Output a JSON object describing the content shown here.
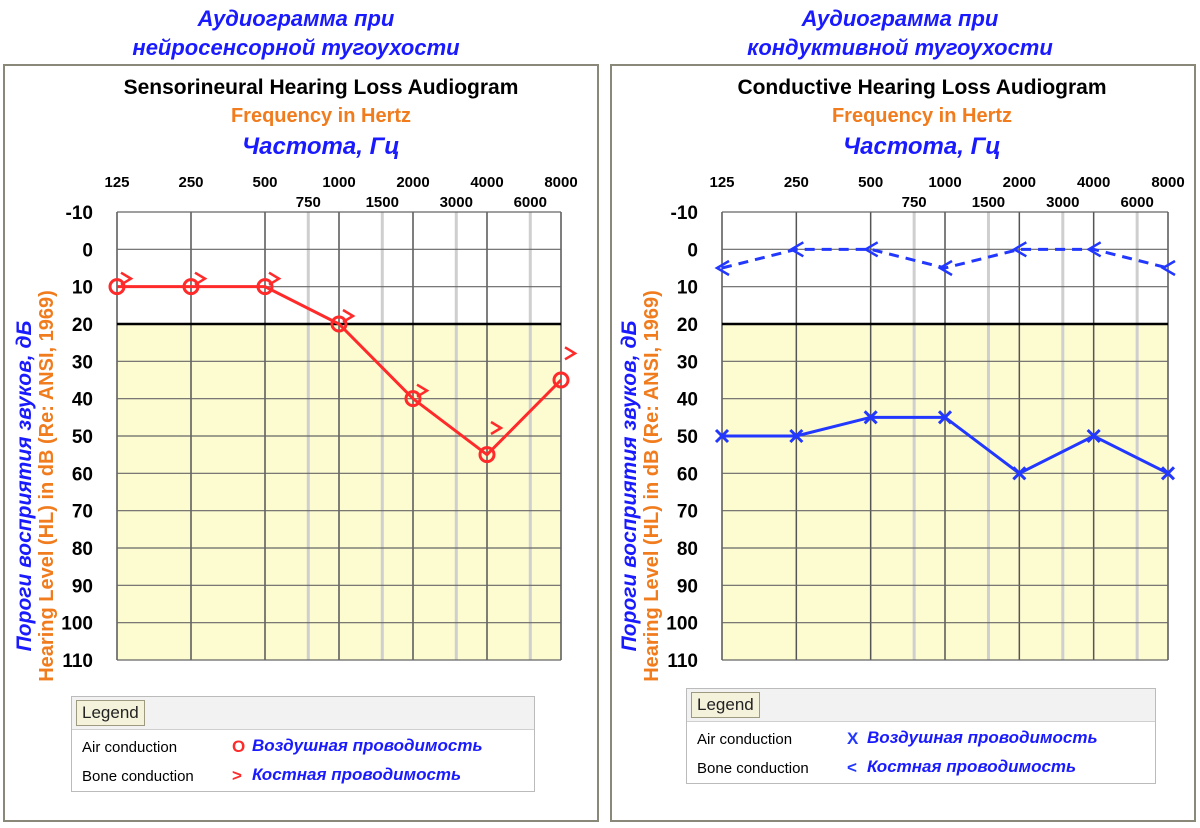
{
  "chart_data": [
    {
      "type": "line",
      "ru_title": "Аудиограмма при\nнейросенсорной тугоухости",
      "title": "Sensorineural Hearing Loss Audiogram",
      "xlabel": "Frequency in Hertz",
      "xlabel_ru": "Частота, Гц",
      "ylabel": "Hearing Level (HL) in dB (Re: ANSI, 1969)",
      "ylabel_ru": "Пороги восприятия звуков, дБ",
      "x_main": [
        "125",
        "250",
        "500",
        "1000",
        "2000",
        "4000",
        "8000"
      ],
      "x_mid": [
        "750",
        "1500",
        "3000",
        "6000"
      ],
      "y_ticks": [
        "-10",
        "0",
        "10",
        "20",
        "30",
        "40",
        "50",
        "60",
        "70",
        "80",
        "90",
        "100",
        "110"
      ],
      "ylim": [
        -10,
        110
      ],
      "normal_limit": 20,
      "colors": {
        "series": "#ff2a2a"
      },
      "series": [
        {
          "name": "Air conduction",
          "marker": "O",
          "connected": true,
          "dashed": false,
          "x": [
            125,
            250,
            500,
            1000,
            2000,
            4000,
            8000
          ],
          "y": [
            10,
            10,
            10,
            20,
            40,
            55,
            35
          ]
        },
        {
          "name": "Bone conduction",
          "marker": ">",
          "connected": false,
          "dashed": false,
          "x": [
            125,
            250,
            500,
            1000,
            2000,
            4000,
            8000
          ],
          "y": [
            10,
            10,
            10,
            20,
            40,
            50,
            30
          ]
        }
      ],
      "legend": {
        "tab": "Legend",
        "air": "Air conduction",
        "air_symbol": "O",
        "air_ru": "Воздушная проводимость",
        "bone": "Bone conduction",
        "bone_symbol": ">",
        "bone_ru": "Костная проводимость"
      }
    },
    {
      "type": "line",
      "ru_title": "Аудиограмма при\nкондуктивной тугоухости",
      "title": "Conductive Hearing Loss Audiogram",
      "xlabel": "Frequency in Hertz",
      "xlabel_ru": "Частота, Гц",
      "ylabel": "Hearing Level (HL) in dB (Re: ANSI, 1969)",
      "ylabel_ru": "Пороги восприятия звуков, дБ",
      "x_main": [
        "125",
        "250",
        "500",
        "1000",
        "2000",
        "4000",
        "8000"
      ],
      "x_mid": [
        "750",
        "1500",
        "3000",
        "6000"
      ],
      "y_ticks": [
        "-10",
        "0",
        "10",
        "20",
        "30",
        "40",
        "50",
        "60",
        "70",
        "80",
        "90",
        "100",
        "110"
      ],
      "ylim": [
        -10,
        110
      ],
      "normal_limit": 20,
      "colors": {
        "series": "#2238ff"
      },
      "series": [
        {
          "name": "Air conduction",
          "marker": "X",
          "connected": true,
          "dashed": false,
          "x": [
            125,
            250,
            500,
            1000,
            2000,
            4000,
            8000
          ],
          "y": [
            50,
            50,
            45,
            45,
            60,
            50,
            60
          ]
        },
        {
          "name": "Bone conduction",
          "marker": "<",
          "connected": true,
          "dashed": true,
          "x": [
            125,
            250,
            500,
            1000,
            2000,
            4000,
            8000
          ],
          "y": [
            5,
            0,
            0,
            5,
            0,
            0,
            5
          ]
        }
      ],
      "legend": {
        "tab": "Legend",
        "air": "Air conduction",
        "air_symbol": "X",
        "air_ru": "Воздушная проводимость",
        "bone": "Bone conduction",
        "bone_symbol": "<",
        "bone_ru": "Костная проводимость"
      }
    }
  ]
}
